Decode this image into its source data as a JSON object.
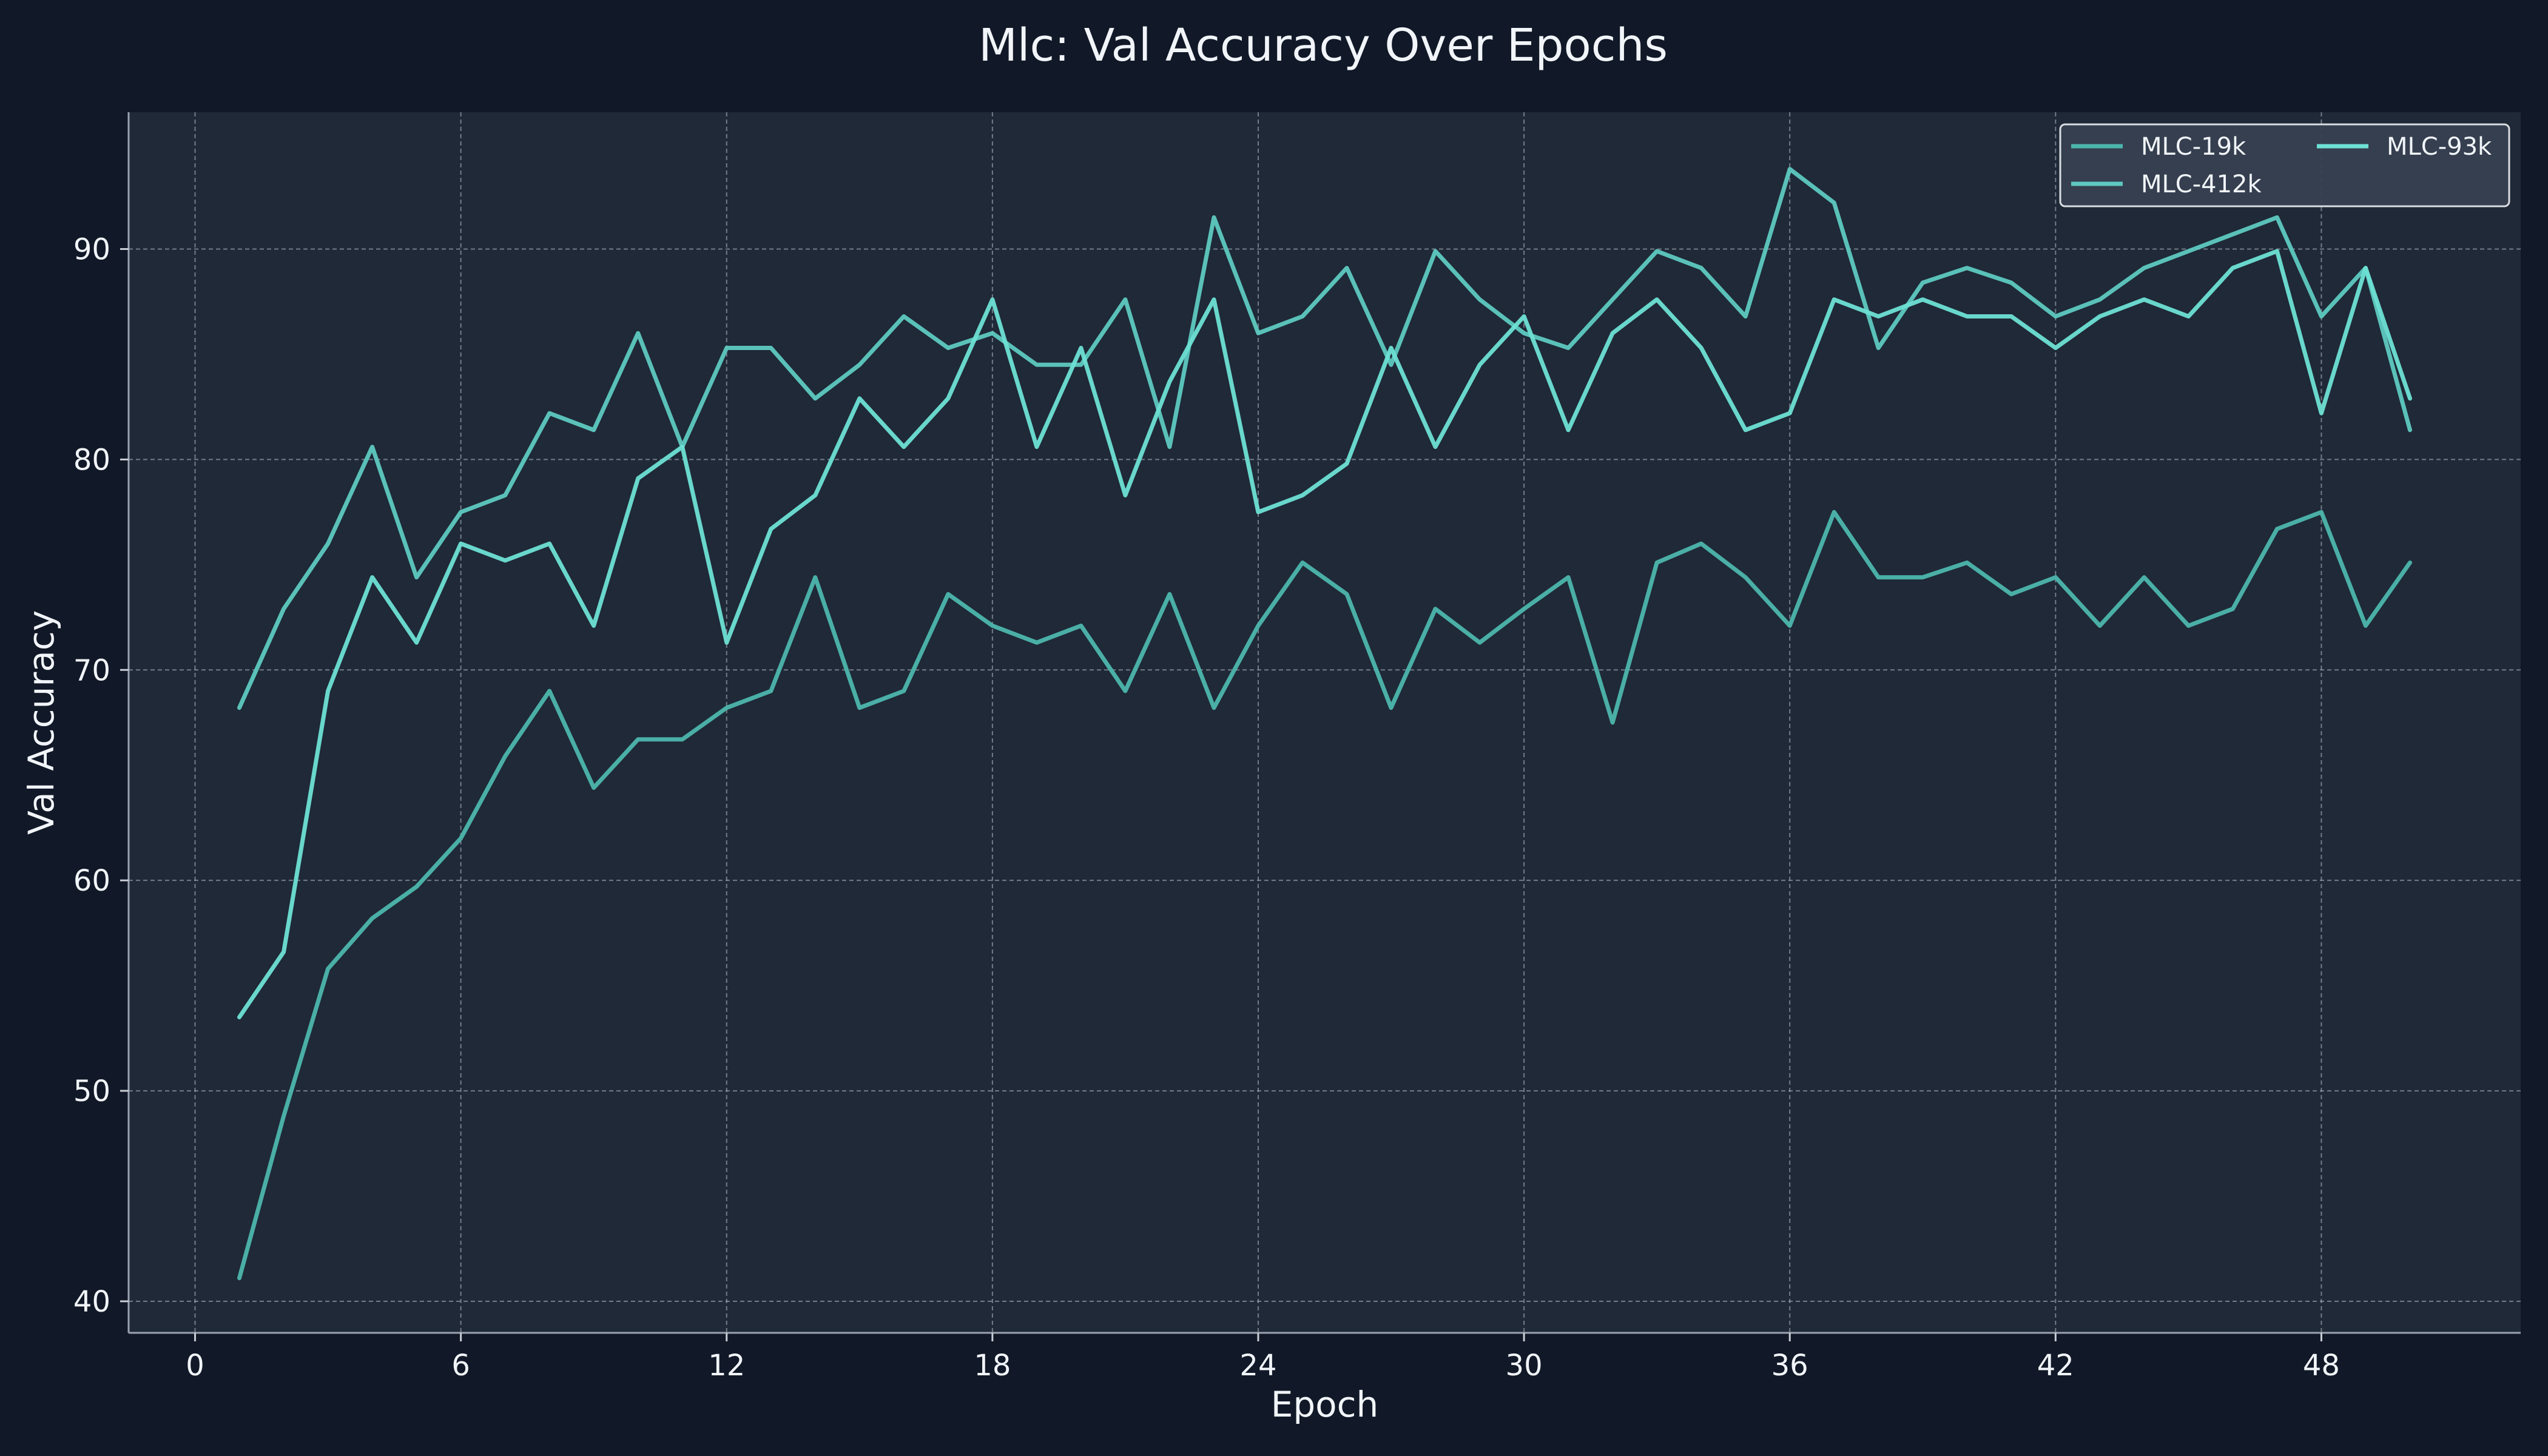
{
  "chart_data": {
    "type": "line",
    "title": "Mlc: Val Accuracy Over Epochs",
    "xlabel": "Epoch",
    "ylabel": "Val Accuracy",
    "xlim": [
      -1.5,
      52.5
    ],
    "ylim": [
      38.5,
      96.5
    ],
    "xticks": [
      0,
      6,
      12,
      18,
      24,
      30,
      36,
      42,
      48
    ],
    "yticks": [
      40,
      50,
      60,
      70,
      80,
      90
    ],
    "grid": true,
    "legend_position": "top-right",
    "legend_columns": 2,
    "x": [
      1,
      2,
      3,
      4,
      5,
      6,
      7,
      8,
      9,
      10,
      11,
      12,
      13,
      14,
      15,
      16,
      17,
      18,
      19,
      20,
      21,
      22,
      23,
      24,
      25,
      26,
      27,
      28,
      29,
      30,
      31,
      32,
      33,
      34,
      35,
      36,
      37,
      38,
      39,
      40,
      41,
      42,
      43,
      44,
      45,
      46,
      47,
      48,
      49,
      50
    ],
    "series": [
      {
        "name": "MLC-19k",
        "color": "#4db6ac",
        "values": [
          41.1,
          48.8,
          55.8,
          58.2,
          59.7,
          62.0,
          65.9,
          69.0,
          64.4,
          66.7,
          66.7,
          68.2,
          69.0,
          74.4,
          68.2,
          69.0,
          73.6,
          72.1,
          71.3,
          72.1,
          69.0,
          73.6,
          68.2,
          72.1,
          75.1,
          73.6,
          68.2,
          72.9,
          71.3,
          72.9,
          74.4,
          67.5,
          75.1,
          76.0,
          74.4,
          72.1,
          77.5,
          74.4,
          74.4,
          75.1,
          73.6,
          74.4,
          72.1,
          74.4,
          72.1,
          72.9,
          76.7,
          77.5,
          72.1,
          75.1
        ]
      },
      {
        "name": "MLC-412k",
        "color": "#5ec9c0",
        "values": [
          68.2,
          72.9,
          76.0,
          80.6,
          74.4,
          77.5,
          78.3,
          82.2,
          81.4,
          86.0,
          80.6,
          85.3,
          85.3,
          82.9,
          84.5,
          86.8,
          85.3,
          86.0,
          84.5,
          84.5,
          87.6,
          80.6,
          91.5,
          86.0,
          86.8,
          89.1,
          84.5,
          89.9,
          87.6,
          86.0,
          85.3,
          87.6,
          89.9,
          89.1,
          86.8,
          93.8,
          92.2,
          85.3,
          88.4,
          89.1,
          88.4,
          86.8,
          87.6,
          89.1,
          89.9,
          90.7,
          91.5,
          86.8,
          89.1,
          81.4
        ]
      },
      {
        "name": "MLC-93k",
        "color": "#6ee0d4",
        "values": [
          53.5,
          56.6,
          69.0,
          74.4,
          71.3,
          76.0,
          75.2,
          76.0,
          72.1,
          79.1,
          80.6,
          71.3,
          76.7,
          78.3,
          82.9,
          80.6,
          82.9,
          87.6,
          80.6,
          85.3,
          78.3,
          83.7,
          87.6,
          77.5,
          78.3,
          79.8,
          85.3,
          80.6,
          84.5,
          86.8,
          81.4,
          86.0,
          87.6,
          85.3,
          81.4,
          82.2,
          87.6,
          86.8,
          87.6,
          86.8,
          86.8,
          85.3,
          86.8,
          87.6,
          86.8,
          89.1,
          89.9,
          82.2,
          89.1,
          82.9
        ]
      }
    ]
  }
}
